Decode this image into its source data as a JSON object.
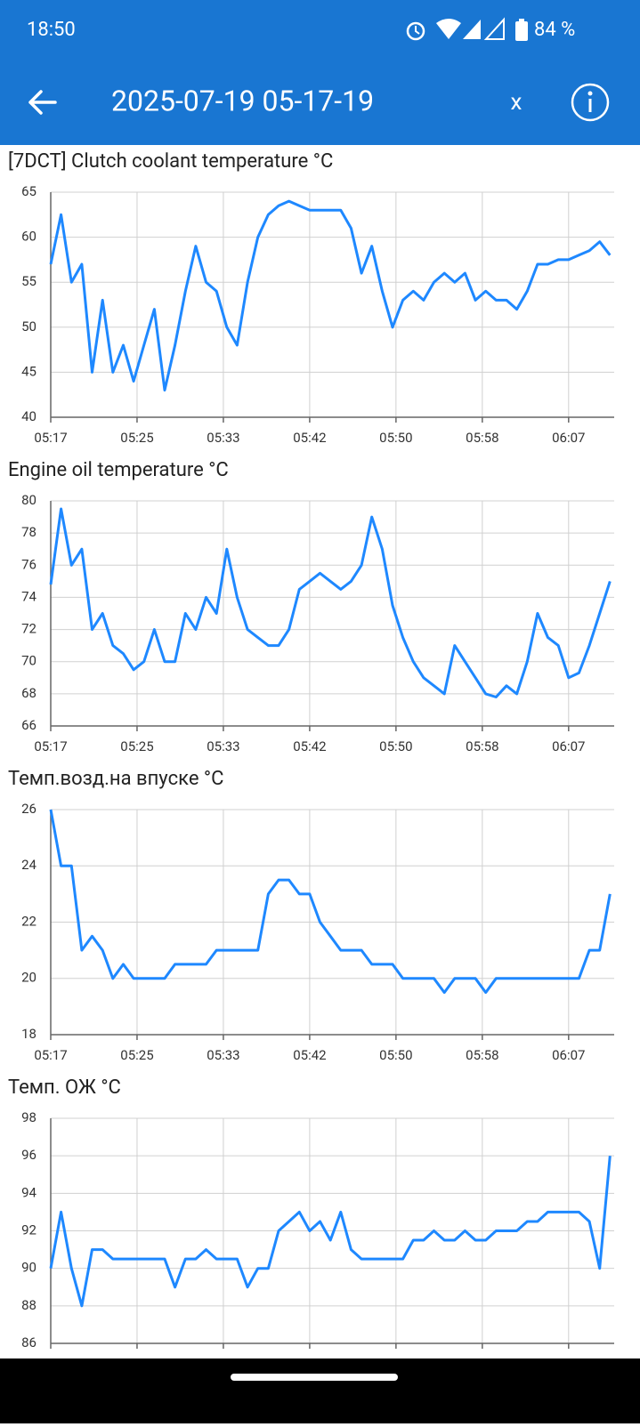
{
  "status_bar": {
    "time": "18:50",
    "battery": "84 %"
  },
  "app_bar": {
    "title": "2025-07-19 05-17-19",
    "close": "x"
  },
  "chart_data": [
    {
      "type": "line",
      "title": "[7DCT] Clutch coolant temperature  °C",
      "color": "#1e88ff",
      "grid": true,
      "x": [
        317,
        318,
        319,
        320,
        321,
        322,
        323,
        324,
        325,
        326,
        327,
        328,
        329,
        330,
        331,
        332,
        333,
        334,
        335,
        336,
        337,
        338,
        339,
        340,
        341,
        342,
        343,
        344,
        345,
        346,
        347,
        348,
        349,
        350,
        351,
        352,
        353,
        354,
        355,
        356,
        357,
        358,
        359,
        360,
        361,
        362,
        363,
        364,
        365,
        366,
        367,
        368,
        369,
        370,
        371
      ],
      "values": [
        57,
        62.5,
        55,
        57,
        45,
        53,
        45,
        48,
        44,
        48,
        52,
        43,
        48,
        54,
        59,
        55,
        54,
        50,
        48,
        55,
        60,
        62.5,
        63.5,
        64,
        63.5,
        63,
        63,
        63,
        63,
        61,
        56,
        59,
        54,
        50,
        53,
        54,
        53,
        55,
        56,
        55,
        56,
        53,
        54,
        53,
        53,
        52,
        54,
        57,
        57,
        57.5,
        57.5,
        58,
        58.5,
        59.5,
        58
      ],
      "xlim": [
        317,
        371.4
      ],
      "ylim": [
        40,
        65
      ],
      "yticks": [
        40,
        45,
        50,
        55,
        60,
        65
      ],
      "xticks": [
        {
          "value": 317,
          "label": "05:17"
        },
        {
          "value": 325.333,
          "label": "05:25"
        },
        {
          "value": 333.667,
          "label": "05:33"
        },
        {
          "value": 342,
          "label": "05:42"
        },
        {
          "value": 350.333,
          "label": "05:50"
        },
        {
          "value": 358.667,
          "label": "05:58"
        },
        {
          "value": 367,
          "label": "06:07"
        }
      ]
    },
    {
      "type": "line",
      "title": "Engine oil temperature  °C",
      "color": "#1e88ff",
      "grid": true,
      "x": [
        317,
        318,
        319,
        320,
        321,
        322,
        323,
        324,
        325,
        326,
        327,
        328,
        329,
        330,
        331,
        332,
        333,
        334,
        335,
        336,
        337,
        338,
        339,
        340,
        341,
        342,
        343,
        344,
        345,
        346,
        347,
        348,
        349,
        350,
        351,
        352,
        353,
        354,
        355,
        356,
        357,
        358,
        359,
        360,
        361,
        362,
        363,
        364,
        365,
        366,
        367,
        368,
        369,
        370,
        371
      ],
      "values": [
        74.8,
        79.5,
        76,
        77,
        72,
        73,
        71,
        70.5,
        69.5,
        70,
        72,
        70,
        70,
        73,
        72,
        74,
        73,
        77,
        74,
        72,
        71.5,
        71,
        71,
        72,
        74.5,
        75,
        75.5,
        75,
        74.5,
        75,
        76,
        79,
        77,
        73.5,
        71.5,
        70,
        69,
        68.5,
        68,
        71,
        70,
        69,
        68,
        67.8,
        68.5,
        68,
        70,
        73,
        71.5,
        71,
        69,
        69.3,
        71,
        73,
        75
      ],
      "xlim": [
        317,
        371.4
      ],
      "ylim": [
        66,
        80
      ],
      "yticks": [
        66,
        68,
        70,
        72,
        74,
        76,
        78,
        80
      ],
      "xticks": [
        {
          "value": 317,
          "label": "05:17"
        },
        {
          "value": 325.333,
          "label": "05:25"
        },
        {
          "value": 333.667,
          "label": "05:33"
        },
        {
          "value": 342,
          "label": "05:42"
        },
        {
          "value": 350.333,
          "label": "05:50"
        },
        {
          "value": 358.667,
          "label": "05:58"
        },
        {
          "value": 367,
          "label": "06:07"
        }
      ]
    },
    {
      "type": "line",
      "title": "Темп.возд.на впуске  °C",
      "color": "#1e88ff",
      "grid": true,
      "x": [
        317,
        318,
        319,
        320,
        321,
        322,
        323,
        324,
        325,
        326,
        327,
        328,
        329,
        330,
        331,
        332,
        333,
        334,
        335,
        336,
        337,
        338,
        339,
        340,
        341,
        342,
        343,
        344,
        345,
        346,
        347,
        348,
        349,
        350,
        351,
        352,
        353,
        354,
        355,
        356,
        357,
        358,
        359,
        360,
        361,
        362,
        363,
        364,
        365,
        366,
        367,
        368,
        369,
        370,
        371
      ],
      "values": [
        26,
        24,
        24,
        21,
        21.5,
        21,
        20,
        20.5,
        20,
        20,
        20,
        20,
        20.5,
        20.5,
        20.5,
        20.5,
        21,
        21,
        21,
        21,
        21,
        23,
        23.5,
        23.5,
        23,
        23,
        22,
        21.5,
        21,
        21,
        21,
        20.5,
        20.5,
        20.5,
        20,
        20,
        20,
        20,
        19.5,
        20,
        20,
        20,
        19.5,
        20,
        20,
        20,
        20,
        20,
        20,
        20,
        20,
        20,
        21,
        21,
        23
      ],
      "xlim": [
        317,
        371.4
      ],
      "ylim": [
        18,
        26
      ],
      "yticks": [
        18,
        20,
        22,
        24,
        26
      ],
      "xticks": [
        {
          "value": 317,
          "label": "05:17"
        },
        {
          "value": 325.333,
          "label": "05:25"
        },
        {
          "value": 333.667,
          "label": "05:33"
        },
        {
          "value": 342,
          "label": "05:42"
        },
        {
          "value": 350.333,
          "label": "05:50"
        },
        {
          "value": 358.667,
          "label": "05:58"
        },
        {
          "value": 367,
          "label": "06:07"
        }
      ]
    },
    {
      "type": "line",
      "title": "Темп. ОЖ  °C",
      "color": "#1e88ff",
      "grid": true,
      "x": [
        317,
        318,
        319,
        320,
        321,
        322,
        323,
        324,
        325,
        326,
        327,
        328,
        329,
        330,
        331,
        332,
        333,
        334,
        335,
        336,
        337,
        338,
        339,
        340,
        341,
        342,
        343,
        344,
        345,
        346,
        347,
        348,
        349,
        350,
        351,
        352,
        353,
        354,
        355,
        356,
        357,
        358,
        359,
        360,
        361,
        362,
        363,
        364,
        365,
        366,
        367,
        368,
        369,
        370,
        371
      ],
      "values": [
        90,
        93,
        90,
        88,
        91,
        91,
        90.5,
        90.5,
        90.5,
        90.5,
        90.5,
        90.5,
        89,
        90.5,
        90.5,
        91,
        90.5,
        90.5,
        90.5,
        89,
        90,
        90,
        92,
        92.5,
        93,
        92,
        92.5,
        91.5,
        93,
        91,
        90.5,
        90.5,
        90.5,
        90.5,
        90.5,
        91.5,
        91.5,
        92,
        91.5,
        91.5,
        92,
        91.5,
        91.5,
        92,
        92,
        92,
        92.5,
        92.5,
        93,
        93,
        93,
        93,
        92.5,
        90,
        96
      ],
      "xlim": [
        317,
        371.4
      ],
      "ylim": [
        86,
        98
      ],
      "yticks": [
        86,
        88,
        90,
        92,
        94,
        96,
        98
      ],
      "xticks": [
        {
          "value": 317,
          "label": "05:17"
        },
        {
          "value": 325.333,
          "label": "05:25"
        },
        {
          "value": 333.667,
          "label": "05:33"
        },
        {
          "value": 342,
          "label": "05:42"
        },
        {
          "value": 350.333,
          "label": "05:50"
        },
        {
          "value": 358.667,
          "label": "05:58"
        },
        {
          "value": 367,
          "label": "06:07"
        }
      ]
    }
  ]
}
